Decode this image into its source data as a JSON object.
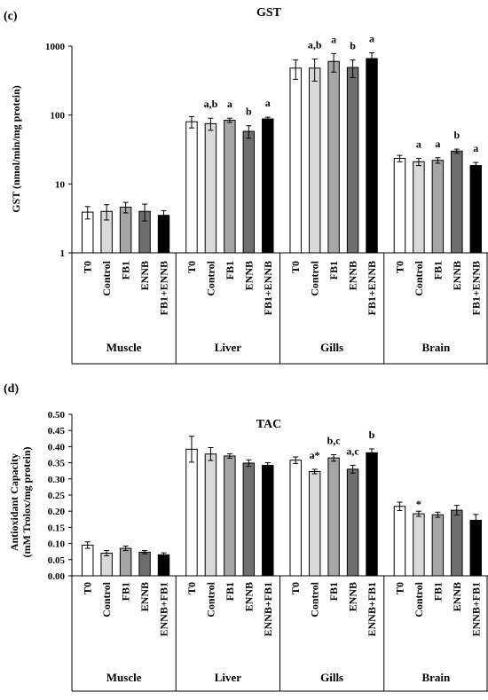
{
  "chart_data": [
    {
      "panel": "(c)",
      "type": "bar",
      "title": "GST",
      "ylabel": "GST (nmol/min/mg protein)",
      "yscale": "log",
      "ylim": [
        1,
        1000
      ],
      "ytick_labels": [
        "1",
        "10",
        "100",
        "1000"
      ],
      "groups": [
        {
          "name": "Muscle",
          "categories": [
            "T0",
            "Control",
            "FB1",
            "ENNB",
            "FB1+ENNB"
          ],
          "values": [
            3.9,
            4.0,
            4.6,
            4.0,
            3.5
          ],
          "errors": [
            0.8,
            1.0,
            0.8,
            1.1,
            0.6
          ],
          "labels": [
            "",
            "",
            "",
            "",
            ""
          ]
        },
        {
          "name": "Liver",
          "categories": [
            "T0",
            "Control",
            "FB1",
            "ENNB",
            "FB1+ENNB"
          ],
          "values": [
            80,
            75,
            84,
            58,
            88
          ],
          "errors": [
            15,
            15,
            6,
            12,
            5
          ],
          "labels": [
            "",
            "a,b",
            "a",
            "b",
            "a"
          ]
        },
        {
          "name": "Gills",
          "categories": [
            "T0",
            "Control",
            "FB1",
            "ENNB",
            "FB1+ENNB"
          ],
          "values": [
            480,
            480,
            600,
            490,
            660
          ],
          "errors": [
            150,
            170,
            180,
            140,
            140
          ],
          "labels": [
            "",
            "a,b",
            "a",
            "b",
            "a"
          ]
        },
        {
          "name": "Brain",
          "categories": [
            "T0",
            "Control",
            "FB1",
            "ENNB",
            "FB1+ENNB"
          ],
          "values": [
            23.5,
            21.0,
            22.0,
            30.0,
            18.5
          ],
          "errors": [
            2.5,
            2.5,
            2.0,
            2.0,
            2.0
          ],
          "labels": [
            "",
            "a",
            "a",
            "b",
            "a"
          ]
        }
      ],
      "bar_colors": [
        "#ffffff",
        "#d9d9d9",
        "#a6a6a6",
        "#6e6e6e",
        "#000000"
      ]
    },
    {
      "panel": "(d)",
      "type": "bar",
      "title": "TAC",
      "ylabel": [
        "Antioxidant Capacity",
        "(mM Trolox/mg protein)"
      ],
      "yscale": "linear",
      "ylim": [
        0,
        0.5
      ],
      "ytick_labels": [
        "0.00",
        "0.05",
        "0.10",
        "0.15",
        "0.20",
        "0.25",
        "0.30",
        "0.35",
        "0.40",
        "0.45",
        "0.50"
      ],
      "groups": [
        {
          "name": "Muscle",
          "categories": [
            "T0",
            "Control",
            "FB1",
            "ENNB",
            "ENNB+FB1"
          ],
          "values": [
            0.095,
            0.07,
            0.085,
            0.073,
            0.065
          ],
          "errors": [
            0.01,
            0.008,
            0.007,
            0.005,
            0.006
          ],
          "labels": [
            "",
            "",
            "",
            "",
            ""
          ]
        },
        {
          "name": "Liver",
          "categories": [
            "T0",
            "Control",
            "FB1",
            "ENNB",
            "ENNB+FB1"
          ],
          "values": [
            0.392,
            0.377,
            0.371,
            0.349,
            0.342
          ],
          "errors": [
            0.04,
            0.02,
            0.007,
            0.01,
            0.008
          ],
          "labels": [
            "",
            "",
            "",
            "",
            ""
          ]
        },
        {
          "name": "Gills",
          "categories": [
            "T0",
            "Control",
            "FB1",
            "ENNB",
            "ENNB+FB1"
          ],
          "values": [
            0.358,
            0.323,
            0.365,
            0.33,
            0.381
          ],
          "errors": [
            0.01,
            0.007,
            0.01,
            0.012,
            0.012
          ],
          "labels": [
            "",
            "a*",
            "b,c",
            "a,c",
            "b"
          ]
        },
        {
          "name": "Brain",
          "categories": [
            "T0",
            "Control",
            "FB1",
            "ENNB",
            "ENNB+FB1"
          ],
          "values": [
            0.215,
            0.192,
            0.189,
            0.203,
            0.172
          ],
          "errors": [
            0.013,
            0.008,
            0.008,
            0.015,
            0.018
          ],
          "labels": [
            "",
            "*",
            "",
            "",
            ""
          ]
        }
      ],
      "bar_colors": [
        "#ffffff",
        "#d9d9d9",
        "#a6a6a6",
        "#6e6e6e",
        "#000000"
      ]
    }
  ]
}
